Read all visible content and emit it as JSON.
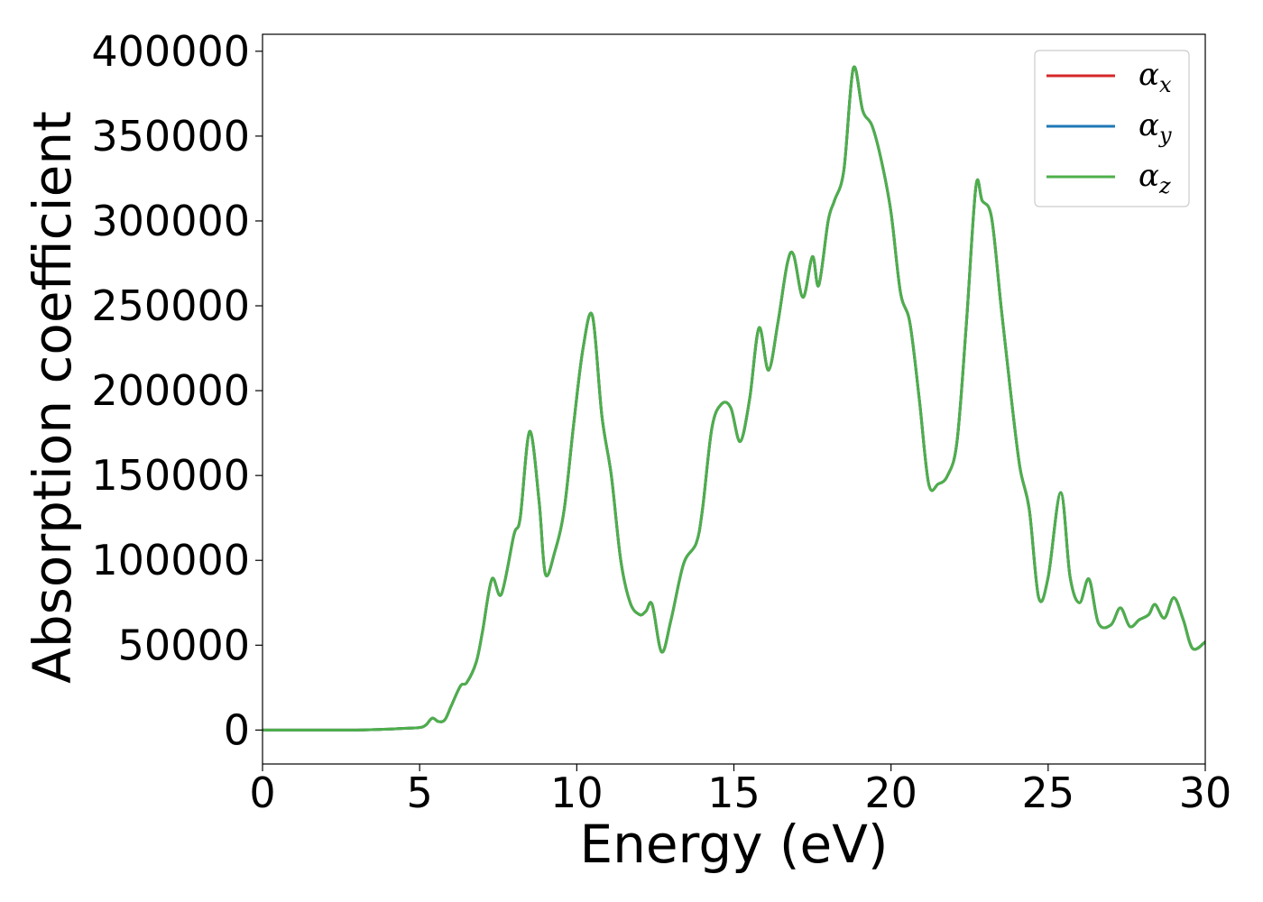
{
  "chart_data": {
    "type": "line",
    "title": "",
    "xlabel": "Energy (eV)",
    "ylabel": "Absorption coefficient",
    "xlim": [
      0,
      30
    ],
    "ylim": [
      -20000,
      410000
    ],
    "xticks": [
      0,
      5,
      10,
      15,
      20,
      25,
      30
    ],
    "xtick_labels": [
      "0",
      "5",
      "10",
      "15",
      "20",
      "25",
      "30"
    ],
    "yticks": [
      0,
      50000,
      100000,
      150000,
      200000,
      250000,
      300000,
      350000,
      400000
    ],
    "ytick_labels": [
      "0",
      "50000",
      "100000",
      "150000",
      "200000",
      "250000",
      "300000",
      "350000",
      "400000"
    ],
    "grid": false,
    "legend_placement": "top-right",
    "x": [
      0,
      1,
      2,
      3,
      4,
      4.5,
      5,
      5.2,
      5.4,
      5.6,
      5.8,
      6.0,
      6.3,
      6.5,
      6.8,
      7.0,
      7.3,
      7.6,
      8.0,
      8.2,
      8.5,
      8.8,
      9.0,
      9.3,
      9.6,
      9.9,
      10.2,
      10.5,
      10.8,
      11.1,
      11.4,
      11.7,
      12.0,
      12.2,
      12.4,
      12.7,
      13.0,
      13.4,
      13.8,
      14.0,
      14.3,
      14.6,
      14.9,
      15.2,
      15.5,
      15.8,
      16.1,
      16.4,
      16.7,
      16.9,
      17.2,
      17.5,
      17.7,
      18.0,
      18.2,
      18.5,
      18.8,
      19.1,
      19.4,
      19.7,
      20.0,
      20.3,
      20.6,
      20.9,
      21.2,
      21.5,
      21.8,
      22.1,
      22.4,
      22.7,
      22.9,
      23.2,
      23.5,
      23.8,
      24.1,
      24.4,
      24.7,
      25.0,
      25.4,
      25.7,
      26.0,
      26.3,
      26.6,
      27.0,
      27.3,
      27.6,
      27.9,
      28.2,
      28.4,
      28.7,
      29.0,
      29.3,
      29.6,
      30.0
    ],
    "series": [
      {
        "name": "αx",
        "color": "#d62728",
        "values": [
          0,
          0,
          0,
          0,
          500,
          1000,
          1500,
          3000,
          7000,
          5000,
          6000,
          14000,
          26000,
          28000,
          40000,
          58000,
          89000,
          80000,
          115000,
          125000,
          176000,
          135000,
          92000,
          105000,
          130000,
          180000,
          225000,
          244000,
          185000,
          150000,
          100000,
          75000,
          68000,
          70000,
          74000,
          46000,
          65000,
          98000,
          110000,
          130000,
          178000,
          192000,
          190000,
          170000,
          195000,
          237000,
          212000,
          240000,
          275000,
          280000,
          255000,
          279000,
          262000,
          300000,
          312000,
          330000,
          390000,
          365000,
          356000,
          335000,
          305000,
          258000,
          240000,
          195000,
          145000,
          145000,
          150000,
          170000,
          240000,
          320000,
          312000,
          302000,
          250000,
          200000,
          155000,
          130000,
          78000,
          90000,
          140000,
          90000,
          75000,
          89000,
          63000,
          62000,
          72000,
          61000,
          65000,
          68000,
          74000,
          66000,
          78000,
          65000,
          48000,
          52000
        ]
      },
      {
        "name": "αy",
        "color": "#1f77b4",
        "values": [
          0,
          0,
          0,
          0,
          500,
          1000,
          1500,
          3000,
          7000,
          5000,
          6000,
          14000,
          26000,
          28000,
          40000,
          58000,
          89000,
          80000,
          115000,
          125000,
          176000,
          135000,
          92000,
          105000,
          130000,
          180000,
          225000,
          244000,
          185000,
          150000,
          100000,
          75000,
          68000,
          70000,
          74000,
          46000,
          65000,
          98000,
          110000,
          130000,
          178000,
          192000,
          190000,
          170000,
          195000,
          237000,
          212000,
          240000,
          275000,
          280000,
          255000,
          279000,
          262000,
          300000,
          312000,
          330000,
          390000,
          365000,
          356000,
          335000,
          305000,
          258000,
          240000,
          195000,
          145000,
          145000,
          150000,
          170000,
          240000,
          320000,
          312000,
          302000,
          250000,
          200000,
          155000,
          130000,
          78000,
          90000,
          140000,
          90000,
          75000,
          89000,
          63000,
          62000,
          72000,
          61000,
          65000,
          68000,
          74000,
          66000,
          78000,
          65000,
          48000,
          52000
        ]
      },
      {
        "name": "αz",
        "color": "#4daf4a",
        "values": [
          0,
          0,
          0,
          0,
          500,
          1000,
          1500,
          3000,
          7000,
          5000,
          6000,
          14000,
          26000,
          28000,
          40000,
          58000,
          89000,
          80000,
          115000,
          125000,
          176000,
          135000,
          92000,
          105000,
          130000,
          180000,
          225000,
          244000,
          185000,
          150000,
          100000,
          75000,
          68000,
          70000,
          74000,
          46000,
          65000,
          98000,
          110000,
          130000,
          178000,
          192000,
          190000,
          170000,
          195000,
          237000,
          212000,
          240000,
          275000,
          280000,
          255000,
          279000,
          262000,
          300000,
          312000,
          330000,
          390000,
          365000,
          356000,
          335000,
          305000,
          258000,
          240000,
          195000,
          145000,
          145000,
          150000,
          170000,
          240000,
          320000,
          312000,
          302000,
          250000,
          200000,
          155000,
          130000,
          78000,
          90000,
          140000,
          90000,
          75000,
          89000,
          63000,
          62000,
          72000,
          61000,
          65000,
          68000,
          74000,
          66000,
          78000,
          65000,
          48000,
          52000
        ]
      }
    ],
    "legend": [
      {
        "symbol": "α",
        "subscript": "x",
        "color": "#d62728"
      },
      {
        "symbol": "α",
        "subscript": "y",
        "color": "#1f77b4"
      },
      {
        "symbol": "α",
        "subscript": "z",
        "color": "#4daf4a"
      }
    ]
  }
}
